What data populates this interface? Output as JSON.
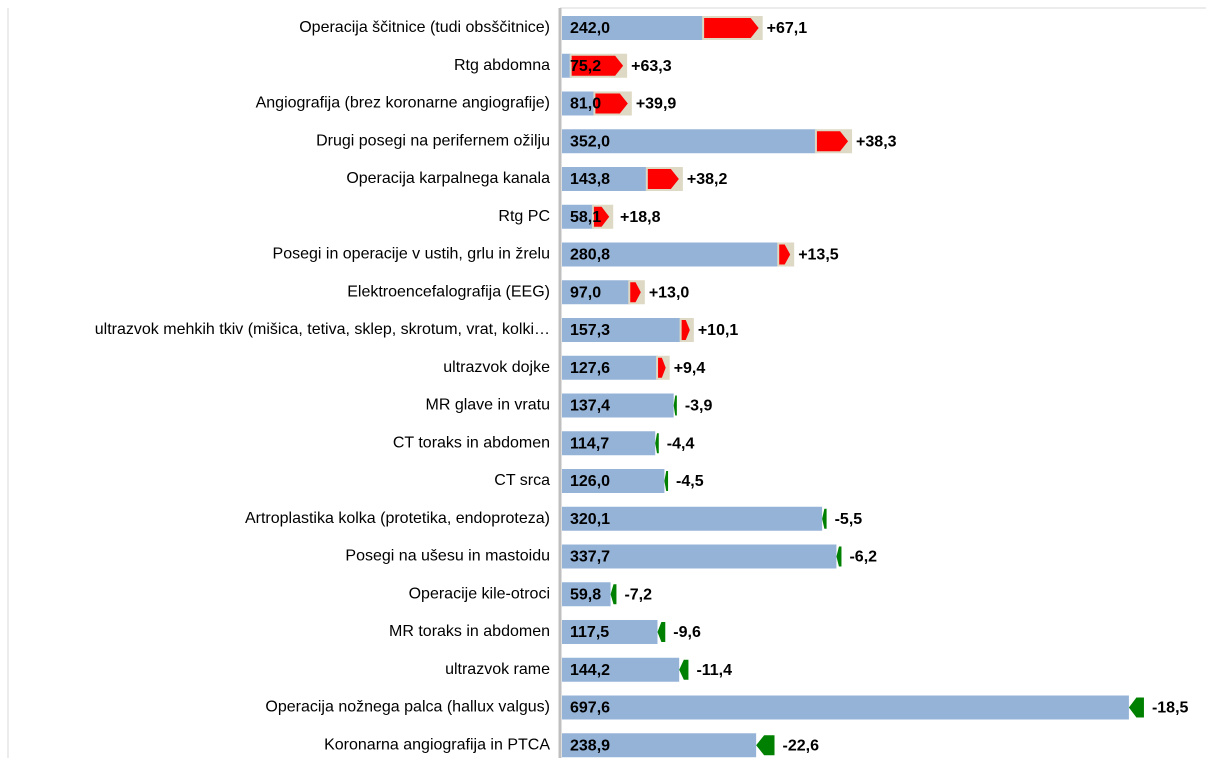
{
  "chart_data": {
    "type": "delta-bar",
    "categories": [
      "Operacija ščitnice (tudi obsščitnice)",
      "Rtg abdomna",
      "Angiografija (brez koronarne angiografije)",
      "Drugi posegi na perifernem ožilju",
      "Operacija karpalnega kanala",
      "Rtg PC",
      "Posegi in operacije v ustih, grlu in žrelu",
      "Elektroencefalografija (EEG)",
      "ultrazvok mehkih tkiv (mišica, tetiva, sklep, skrotum, vrat, kolki…",
      "ultrazvok dojke",
      "MR glave in vratu",
      "CT toraks in abdomen",
      "CT srca",
      "Artroplastika kolka (protetika, endoproteza)",
      "Posegi na ušesu in mastoidu",
      "Operacije kile-otroci",
      "MR toraks in abdomen",
      "ultrazvok rame",
      "Operacija nožnega palca (hallux valgus)",
      "Koronarna angiografija in PTCA"
    ],
    "values": [
      242.0,
      75.2,
      81.0,
      352.0,
      143.8,
      58.1,
      280.8,
      97.0,
      157.3,
      127.6,
      137.4,
      114.7,
      126.0,
      320.1,
      337.7,
      59.8,
      117.5,
      144.2,
      697.6,
      238.9
    ],
    "value_labels": [
      "242,0",
      "75,2",
      "81,0",
      "352,0",
      "143,8",
      "58,1",
      "280,8",
      "97,0",
      "157,3",
      "127,6",
      "137,4",
      "114,7",
      "126,0",
      "320,1",
      "337,7",
      "59,8",
      "117,5",
      "144,2",
      "697,6",
      "238,9"
    ],
    "changes": [
      67.1,
      63.3,
      39.9,
      38.3,
      38.2,
      18.8,
      13.5,
      13.0,
      10.1,
      9.4,
      -3.9,
      -4.4,
      -4.5,
      -5.5,
      -6.2,
      -7.2,
      -9.6,
      -11.4,
      -18.5,
      -22.6
    ],
    "change_labels": [
      "+67,1",
      "+63,3",
      "+39,9",
      "+38,3",
      "+38,2",
      "+18,8",
      "+13,5",
      "+13,0",
      "+10,1",
      "+9,4",
      "-3,9",
      "-4,4",
      "-4,5",
      "-5,5",
      "-6,2",
      "-7,2",
      "-9,6",
      "-11,4",
      "-18,5",
      "-22,6"
    ],
    "color": "#95b3d7",
    "increase_color": "#ff0000",
    "decrease_color": "#008000",
    "xlim": [
      0,
      790
    ]
  }
}
